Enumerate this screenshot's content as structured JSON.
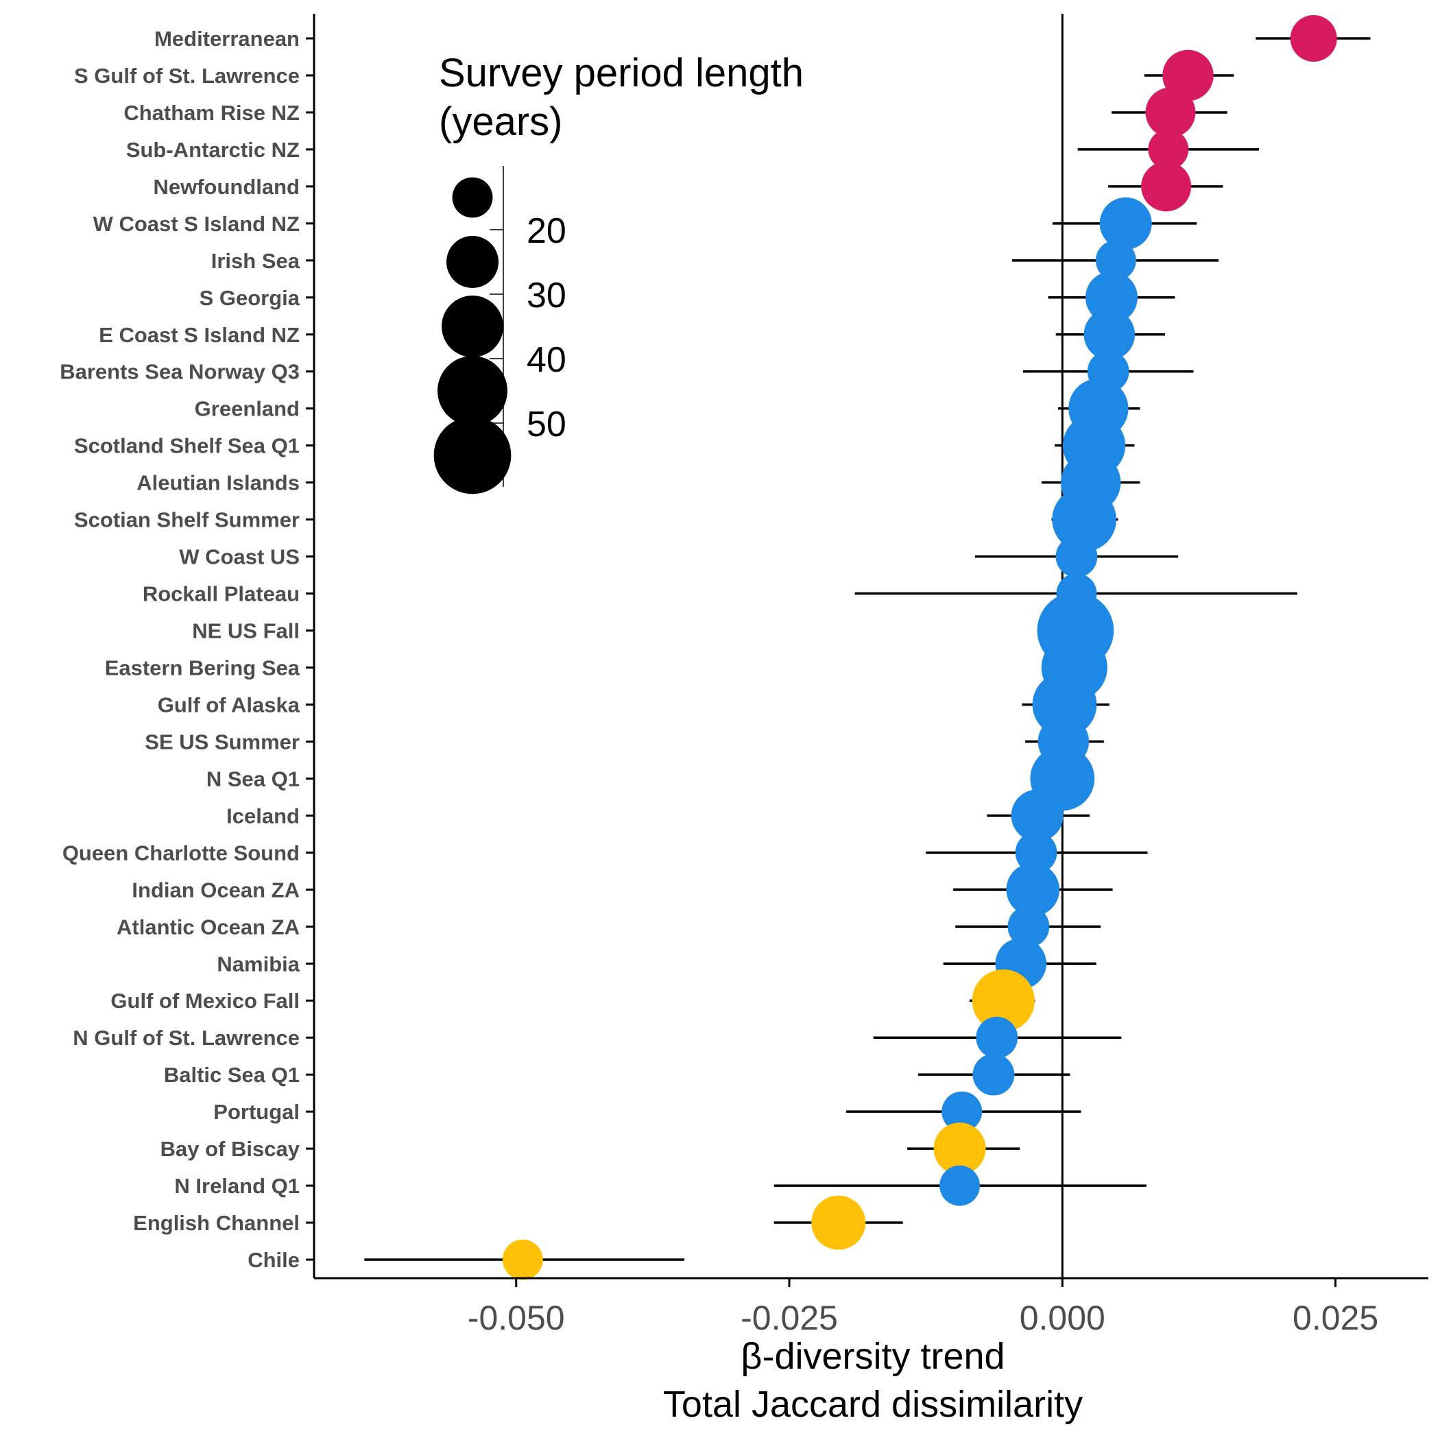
{
  "chart_data": {
    "type": "scatter",
    "xlabel_lines": [
      "β-diversity trend",
      "Total Jaccard dissimilarity"
    ],
    "xlim": [
      -0.0685,
      0.0335
    ],
    "xticks": [
      -0.05,
      -0.025,
      0.0,
      0.025
    ],
    "xtick_labels": [
      "-0.050",
      "-0.025",
      "0.000",
      "0.025"
    ],
    "reference_line_x": 0,
    "colors": {
      "increasing": "#d81b60",
      "nonsignificant": "#1e88e5",
      "decreasing": "#ffc107"
    },
    "legend": {
      "title_lines": [
        "Survey period length",
        "(years)"
      ],
      "values": [
        20,
        30,
        40,
        50
      ],
      "labels": [
        "20",
        "30",
        "40",
        "50"
      ],
      "sample_sizes": [
        15,
        25,
        35,
        45,
        55
      ],
      "placement": "top-left"
    },
    "points": [
      {
        "name": "Mediterranean",
        "x": 0.023,
        "lo": 0.0177,
        "hi": 0.0282,
        "size": 20,
        "group": "increasing"
      },
      {
        "name": "S Gulf of St. Lawrence",
        "x": 0.0115,
        "lo": 0.0075,
        "hi": 0.0157,
        "size": 24,
        "group": "increasing"
      },
      {
        "name": "Chatham Rise NZ",
        "x": 0.0099,
        "lo": 0.0045,
        "hi": 0.0151,
        "size": 23,
        "group": "increasing"
      },
      {
        "name": "Sub-Antarctic NZ",
        "x": 0.0097,
        "lo": 0.0014,
        "hi": 0.018,
        "size": 15,
        "group": "increasing"
      },
      {
        "name": "Newfoundland",
        "x": 0.0095,
        "lo": 0.0042,
        "hi": 0.0147,
        "size": 23,
        "group": "increasing"
      },
      {
        "name": "W Coast S Island NZ",
        "x": 0.0058,
        "lo": -0.0009,
        "hi": 0.0123,
        "size": 25,
        "group": "nonsignificant"
      },
      {
        "name": "Irish Sea",
        "x": 0.0049,
        "lo": -0.0046,
        "hi": 0.0143,
        "size": 15,
        "group": "nonsignificant"
      },
      {
        "name": "S Georgia",
        "x": 0.0045,
        "lo": -0.0013,
        "hi": 0.0103,
        "size": 25,
        "group": "nonsignificant"
      },
      {
        "name": "E Coast S Island NZ",
        "x": 0.0043,
        "lo": -0.0006,
        "hi": 0.0094,
        "size": 24,
        "group": "nonsignificant"
      },
      {
        "name": "Barents Sea Norway Q3",
        "x": 0.0042,
        "lo": -0.0036,
        "hi": 0.012,
        "size": 16,
        "group": "nonsignificant"
      },
      {
        "name": "Greenland",
        "x": 0.0033,
        "lo": -0.0004,
        "hi": 0.0071,
        "size": 33,
        "group": "nonsignificant"
      },
      {
        "name": "Scotland Shelf Sea Q1",
        "x": 0.0029,
        "lo": -0.0007,
        "hi": 0.0066,
        "size": 36,
        "group": "nonsignificant"
      },
      {
        "name": "Aleutian Islands",
        "x": 0.0026,
        "lo": -0.0019,
        "hi": 0.0071,
        "size": 33,
        "group": "nonsignificant"
      },
      {
        "name": "Scotian Shelf Summer",
        "x": 0.002,
        "lo": -0.001,
        "hi": 0.0051,
        "size": 38,
        "group": "nonsignificant"
      },
      {
        "name": "W Coast US",
        "x": 0.0013,
        "lo": -0.008,
        "hi": 0.0106,
        "size": 16,
        "group": "nonsignificant"
      },
      {
        "name": "Rockall Plateau",
        "x": 0.0013,
        "lo": -0.019,
        "hi": 0.0215,
        "size": 15,
        "group": "nonsignificant"
      },
      {
        "name": "NE US Fall",
        "x": 0.0012,
        "lo": -0.002,
        "hi": 0.0043,
        "size": 54,
        "group": "nonsignificant"
      },
      {
        "name": "Eastern Bering Sea",
        "x": 0.0011,
        "lo": -0.0017,
        "hi": 0.0038,
        "size": 40,
        "group": "nonsignificant"
      },
      {
        "name": "Gulf of Alaska",
        "x": 0.0002,
        "lo": -0.0037,
        "hi": 0.0043,
        "size": 38,
        "group": "nonsignificant"
      },
      {
        "name": "SE US Summer",
        "x": 0.0001,
        "lo": -0.0034,
        "hi": 0.0038,
        "size": 24,
        "group": "nonsignificant"
      },
      {
        "name": "N Sea Q1",
        "x": 0.0,
        "lo": -0.0026,
        "hi": 0.0028,
        "size": 38,
        "group": "nonsignificant"
      },
      {
        "name": "Iceland",
        "x": -0.0023,
        "lo": -0.0069,
        "hi": 0.0025,
        "size": 25,
        "group": "nonsignificant"
      },
      {
        "name": "Queen Charlotte Sound",
        "x": -0.0024,
        "lo": -0.0125,
        "hi": 0.0078,
        "size": 16,
        "group": "nonsignificant"
      },
      {
        "name": "Indian Ocean ZA",
        "x": -0.0027,
        "lo": -0.01,
        "hi": 0.0046,
        "size": 26,
        "group": "nonsignificant"
      },
      {
        "name": "Atlantic Ocean ZA",
        "x": -0.0031,
        "lo": -0.0098,
        "hi": 0.0035,
        "size": 16,
        "group": "nonsignificant"
      },
      {
        "name": "Namibia",
        "x": -0.0038,
        "lo": -0.0109,
        "hi": 0.0031,
        "size": 24,
        "group": "nonsignificant"
      },
      {
        "name": "Gulf of Mexico Fall",
        "x": -0.0054,
        "lo": -0.0085,
        "hi": -0.0025,
        "size": 36,
        "group": "decreasing"
      },
      {
        "name": "N Gulf of St. Lawrence",
        "x": -0.006,
        "lo": -0.0173,
        "hi": 0.0054,
        "size": 16,
        "group": "nonsignificant"
      },
      {
        "name": "Baltic Sea Q1",
        "x": -0.0063,
        "lo": -0.0132,
        "hi": 0.0007,
        "size": 16,
        "group": "nonsignificant"
      },
      {
        "name": "Portugal",
        "x": -0.0092,
        "lo": -0.0198,
        "hi": 0.0017,
        "size": 15,
        "group": "nonsignificant"
      },
      {
        "name": "Bay of Biscay",
        "x": -0.0094,
        "lo": -0.0142,
        "hi": -0.0039,
        "size": 25,
        "group": "decreasing"
      },
      {
        "name": "N Ireland Q1",
        "x": -0.0094,
        "lo": -0.0264,
        "hi": 0.0077,
        "size": 15,
        "group": "nonsignificant"
      },
      {
        "name": "English Channel",
        "x": -0.0205,
        "lo": -0.0264,
        "hi": -0.0146,
        "size": 27,
        "group": "decreasing"
      },
      {
        "name": "Chile",
        "x": -0.0494,
        "lo": -0.0639,
        "hi": -0.0346,
        "size": 15,
        "group": "decreasing"
      }
    ]
  }
}
